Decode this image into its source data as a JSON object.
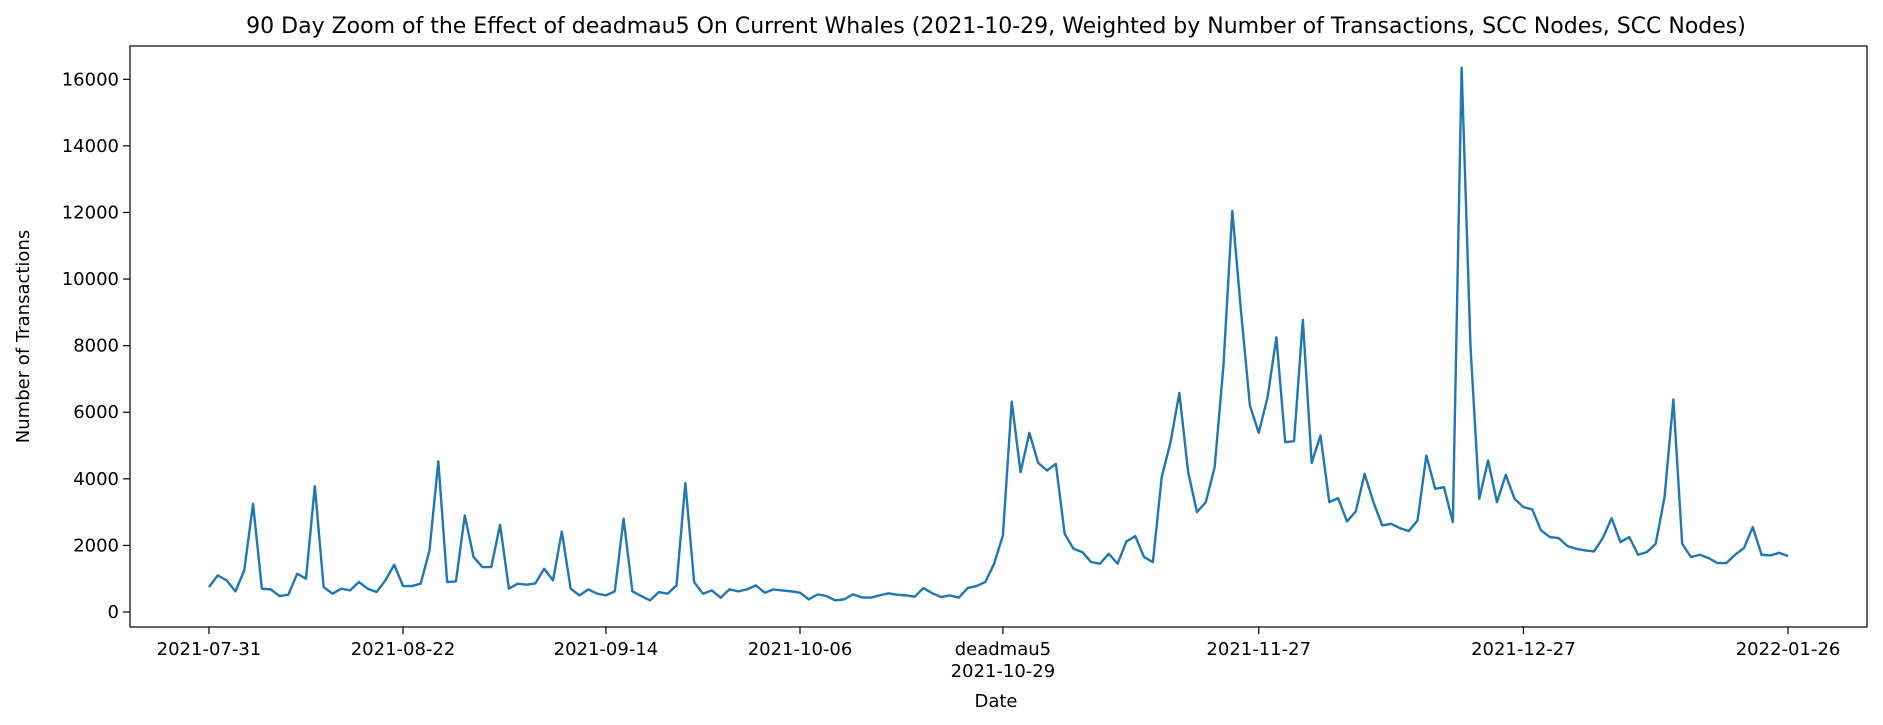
{
  "chart_data": {
    "type": "line",
    "title": "90 Day Zoom of the Effect of deadmau5 On Current Whales (2021-10-29, Weighted by Number of Transactions, SCC Nodes, SCC Nodes)",
    "xlabel": "Date",
    "ylabel": "Number of Transactions",
    "ylim": [
      -450,
      17000
    ],
    "yticks": [
      0,
      2000,
      4000,
      6000,
      8000,
      10000,
      12000,
      14000,
      16000
    ],
    "xticks": [
      {
        "date": "2021-07-31",
        "label": "2021-07-31"
      },
      {
        "date": "2021-08-22",
        "label": "2021-08-22"
      },
      {
        "date": "2021-09-14",
        "label": "2021-09-14"
      },
      {
        "date": "2021-10-06",
        "label": "2021-10-06"
      },
      {
        "date": "2021-10-29",
        "label": "2021-10-29",
        "annotation": "deadmau5"
      },
      {
        "date": "2021-11-27",
        "label": "2021-11-27"
      },
      {
        "date": "2021-12-27",
        "label": "2021-12-27"
      },
      {
        "date": "2022-01-26",
        "label": "2022-01-26"
      }
    ],
    "grid": false,
    "legend": false,
    "color": "#1f77b4",
    "series": [
      {
        "values": [
          [
            "2021-07-31",
            750
          ],
          [
            "2021-08-01",
            1100
          ],
          [
            "2021-08-02",
            950
          ],
          [
            "2021-08-03",
            620
          ],
          [
            "2021-08-04",
            1250
          ],
          [
            "2021-08-05",
            3250
          ],
          [
            "2021-08-06",
            700
          ],
          [
            "2021-08-07",
            680
          ],
          [
            "2021-08-08",
            480
          ],
          [
            "2021-08-09",
            520
          ],
          [
            "2021-08-10",
            1150
          ],
          [
            "2021-08-11",
            1000
          ],
          [
            "2021-08-12",
            3780
          ],
          [
            "2021-08-13",
            750
          ],
          [
            "2021-08-14",
            550
          ],
          [
            "2021-08-15",
            700
          ],
          [
            "2021-08-16",
            650
          ],
          [
            "2021-08-17",
            900
          ],
          [
            "2021-08-18",
            700
          ],
          [
            "2021-08-19",
            600
          ],
          [
            "2021-08-20",
            950
          ],
          [
            "2021-08-21",
            1420
          ],
          [
            "2021-08-22",
            780
          ],
          [
            "2021-08-23",
            780
          ],
          [
            "2021-08-24",
            850
          ],
          [
            "2021-08-25",
            1850
          ],
          [
            "2021-08-26",
            4530
          ],
          [
            "2021-08-27",
            900
          ],
          [
            "2021-08-28",
            920
          ],
          [
            "2021-08-29",
            2900
          ],
          [
            "2021-08-30",
            1650
          ],
          [
            "2021-08-31",
            1350
          ],
          [
            "2021-09-01",
            1350
          ],
          [
            "2021-09-02",
            2620
          ],
          [
            "2021-09-03",
            700
          ],
          [
            "2021-09-04",
            850
          ],
          [
            "2021-09-05",
            820
          ],
          [
            "2021-09-06",
            860
          ],
          [
            "2021-09-07",
            1300
          ],
          [
            "2021-09-08",
            950
          ],
          [
            "2021-09-09",
            2420
          ],
          [
            "2021-09-10",
            700
          ],
          [
            "2021-09-11",
            500
          ],
          [
            "2021-09-12",
            680
          ],
          [
            "2021-09-13",
            550
          ],
          [
            "2021-09-14",
            500
          ],
          [
            "2021-09-15",
            620
          ],
          [
            "2021-09-16",
            2800
          ],
          [
            "2021-09-17",
            620
          ],
          [
            "2021-09-18",
            480
          ],
          [
            "2021-09-19",
            350
          ],
          [
            "2021-09-20",
            600
          ],
          [
            "2021-09-21",
            550
          ],
          [
            "2021-09-22",
            800
          ],
          [
            "2021-09-23",
            3870
          ],
          [
            "2021-09-24",
            900
          ],
          [
            "2021-09-25",
            550
          ],
          [
            "2021-09-26",
            650
          ],
          [
            "2021-09-27",
            430
          ],
          [
            "2021-09-28",
            680
          ],
          [
            "2021-09-29",
            620
          ],
          [
            "2021-09-30",
            680
          ],
          [
            "2021-10-01",
            800
          ],
          [
            "2021-10-02",
            580
          ],
          [
            "2021-10-03",
            680
          ],
          [
            "2021-10-04",
            650
          ],
          [
            "2021-10-05",
            620
          ],
          [
            "2021-10-06",
            580
          ],
          [
            "2021-10-07",
            380
          ],
          [
            "2021-10-08",
            530
          ],
          [
            "2021-10-09",
            480
          ],
          [
            "2021-10-10",
            350
          ],
          [
            "2021-10-11",
            380
          ],
          [
            "2021-10-12",
            530
          ],
          [
            "2021-10-13",
            440
          ],
          [
            "2021-10-14",
            430
          ],
          [
            "2021-10-15",
            500
          ],
          [
            "2021-10-16",
            560
          ],
          [
            "2021-10-17",
            520
          ],
          [
            "2021-10-18",
            500
          ],
          [
            "2021-10-19",
            460
          ],
          [
            "2021-10-20",
            720
          ],
          [
            "2021-10-21",
            560
          ],
          [
            "2021-10-22",
            450
          ],
          [
            "2021-10-23",
            500
          ],
          [
            "2021-10-24",
            430
          ],
          [
            "2021-10-25",
            720
          ],
          [
            "2021-10-26",
            780
          ],
          [
            "2021-10-27",
            900
          ],
          [
            "2021-10-28",
            1450
          ],
          [
            "2021-10-29",
            2300
          ],
          [
            "2021-10-30",
            6320
          ],
          [
            "2021-10-31",
            4200
          ],
          [
            "2021-11-01",
            5380
          ],
          [
            "2021-11-02",
            4480
          ],
          [
            "2021-11-03",
            4250
          ],
          [
            "2021-11-04",
            4450
          ],
          [
            "2021-11-05",
            2350
          ],
          [
            "2021-11-06",
            1900
          ],
          [
            "2021-11-07",
            1800
          ],
          [
            "2021-11-08",
            1500
          ],
          [
            "2021-11-09",
            1450
          ],
          [
            "2021-11-10",
            1750
          ],
          [
            "2021-11-11",
            1450
          ],
          [
            "2021-11-12",
            2120
          ],
          [
            "2021-11-13",
            2280
          ],
          [
            "2021-11-14",
            1650
          ],
          [
            "2021-11-15",
            1500
          ],
          [
            "2021-11-16",
            4050
          ],
          [
            "2021-11-17",
            5100
          ],
          [
            "2021-11-18",
            6580
          ],
          [
            "2021-11-19",
            4200
          ],
          [
            "2021-11-20",
            3000
          ],
          [
            "2021-11-21",
            3300
          ],
          [
            "2021-11-22",
            4350
          ],
          [
            "2021-11-23",
            7400
          ],
          [
            "2021-11-24",
            12050
          ],
          [
            "2021-11-25",
            9000
          ],
          [
            "2021-11-26",
            6200
          ],
          [
            "2021-11-27",
            5380
          ],
          [
            "2021-11-28",
            6450
          ],
          [
            "2021-11-29",
            8250
          ],
          [
            "2021-11-30",
            5100
          ],
          [
            "2021-12-01",
            5130
          ],
          [
            "2021-12-02",
            8780
          ],
          [
            "2021-12-03",
            4480
          ],
          [
            "2021-12-04",
            5300
          ],
          [
            "2021-12-05",
            3300
          ],
          [
            "2021-12-06",
            3420
          ],
          [
            "2021-12-07",
            2720
          ],
          [
            "2021-12-08",
            3020
          ],
          [
            "2021-12-09",
            4150
          ],
          [
            "2021-12-10",
            3300
          ],
          [
            "2021-12-11",
            2600
          ],
          [
            "2021-12-12",
            2650
          ],
          [
            "2021-12-13",
            2520
          ],
          [
            "2021-12-14",
            2430
          ],
          [
            "2021-12-15",
            2750
          ],
          [
            "2021-12-16",
            4700
          ],
          [
            "2021-12-17",
            3700
          ],
          [
            "2021-12-18",
            3750
          ],
          [
            "2021-12-19",
            2700
          ],
          [
            "2021-12-20",
            16350
          ],
          [
            "2021-12-21",
            8000
          ],
          [
            "2021-12-22",
            3400
          ],
          [
            "2021-12-23",
            4550
          ],
          [
            "2021-12-24",
            3300
          ],
          [
            "2021-12-25",
            4120
          ],
          [
            "2021-12-26",
            3400
          ],
          [
            "2021-12-27",
            3150
          ],
          [
            "2021-12-28",
            3080
          ],
          [
            "2021-12-29",
            2450
          ],
          [
            "2021-12-30",
            2250
          ],
          [
            "2021-12-31",
            2220
          ],
          [
            "2022-01-01",
            1980
          ],
          [
            "2022-01-02",
            1900
          ],
          [
            "2022-01-03",
            1850
          ],
          [
            "2022-01-04",
            1820
          ],
          [
            "2022-01-05",
            2220
          ],
          [
            "2022-01-06",
            2820
          ],
          [
            "2022-01-07",
            2100
          ],
          [
            "2022-01-08",
            2250
          ],
          [
            "2022-01-09",
            1720
          ],
          [
            "2022-01-10",
            1800
          ],
          [
            "2022-01-11",
            2050
          ],
          [
            "2022-01-12",
            3450
          ],
          [
            "2022-01-13",
            6380
          ],
          [
            "2022-01-14",
            2050
          ],
          [
            "2022-01-15",
            1650
          ],
          [
            "2022-01-16",
            1720
          ],
          [
            "2022-01-17",
            1620
          ],
          [
            "2022-01-18",
            1470
          ],
          [
            "2022-01-19",
            1470
          ],
          [
            "2022-01-20",
            1720
          ],
          [
            "2022-01-21",
            1920
          ],
          [
            "2022-01-22",
            2550
          ],
          [
            "2022-01-23",
            1720
          ],
          [
            "2022-01-24",
            1700
          ],
          [
            "2022-01-25",
            1780
          ],
          [
            "2022-01-26",
            1680
          ]
        ]
      }
    ]
  }
}
